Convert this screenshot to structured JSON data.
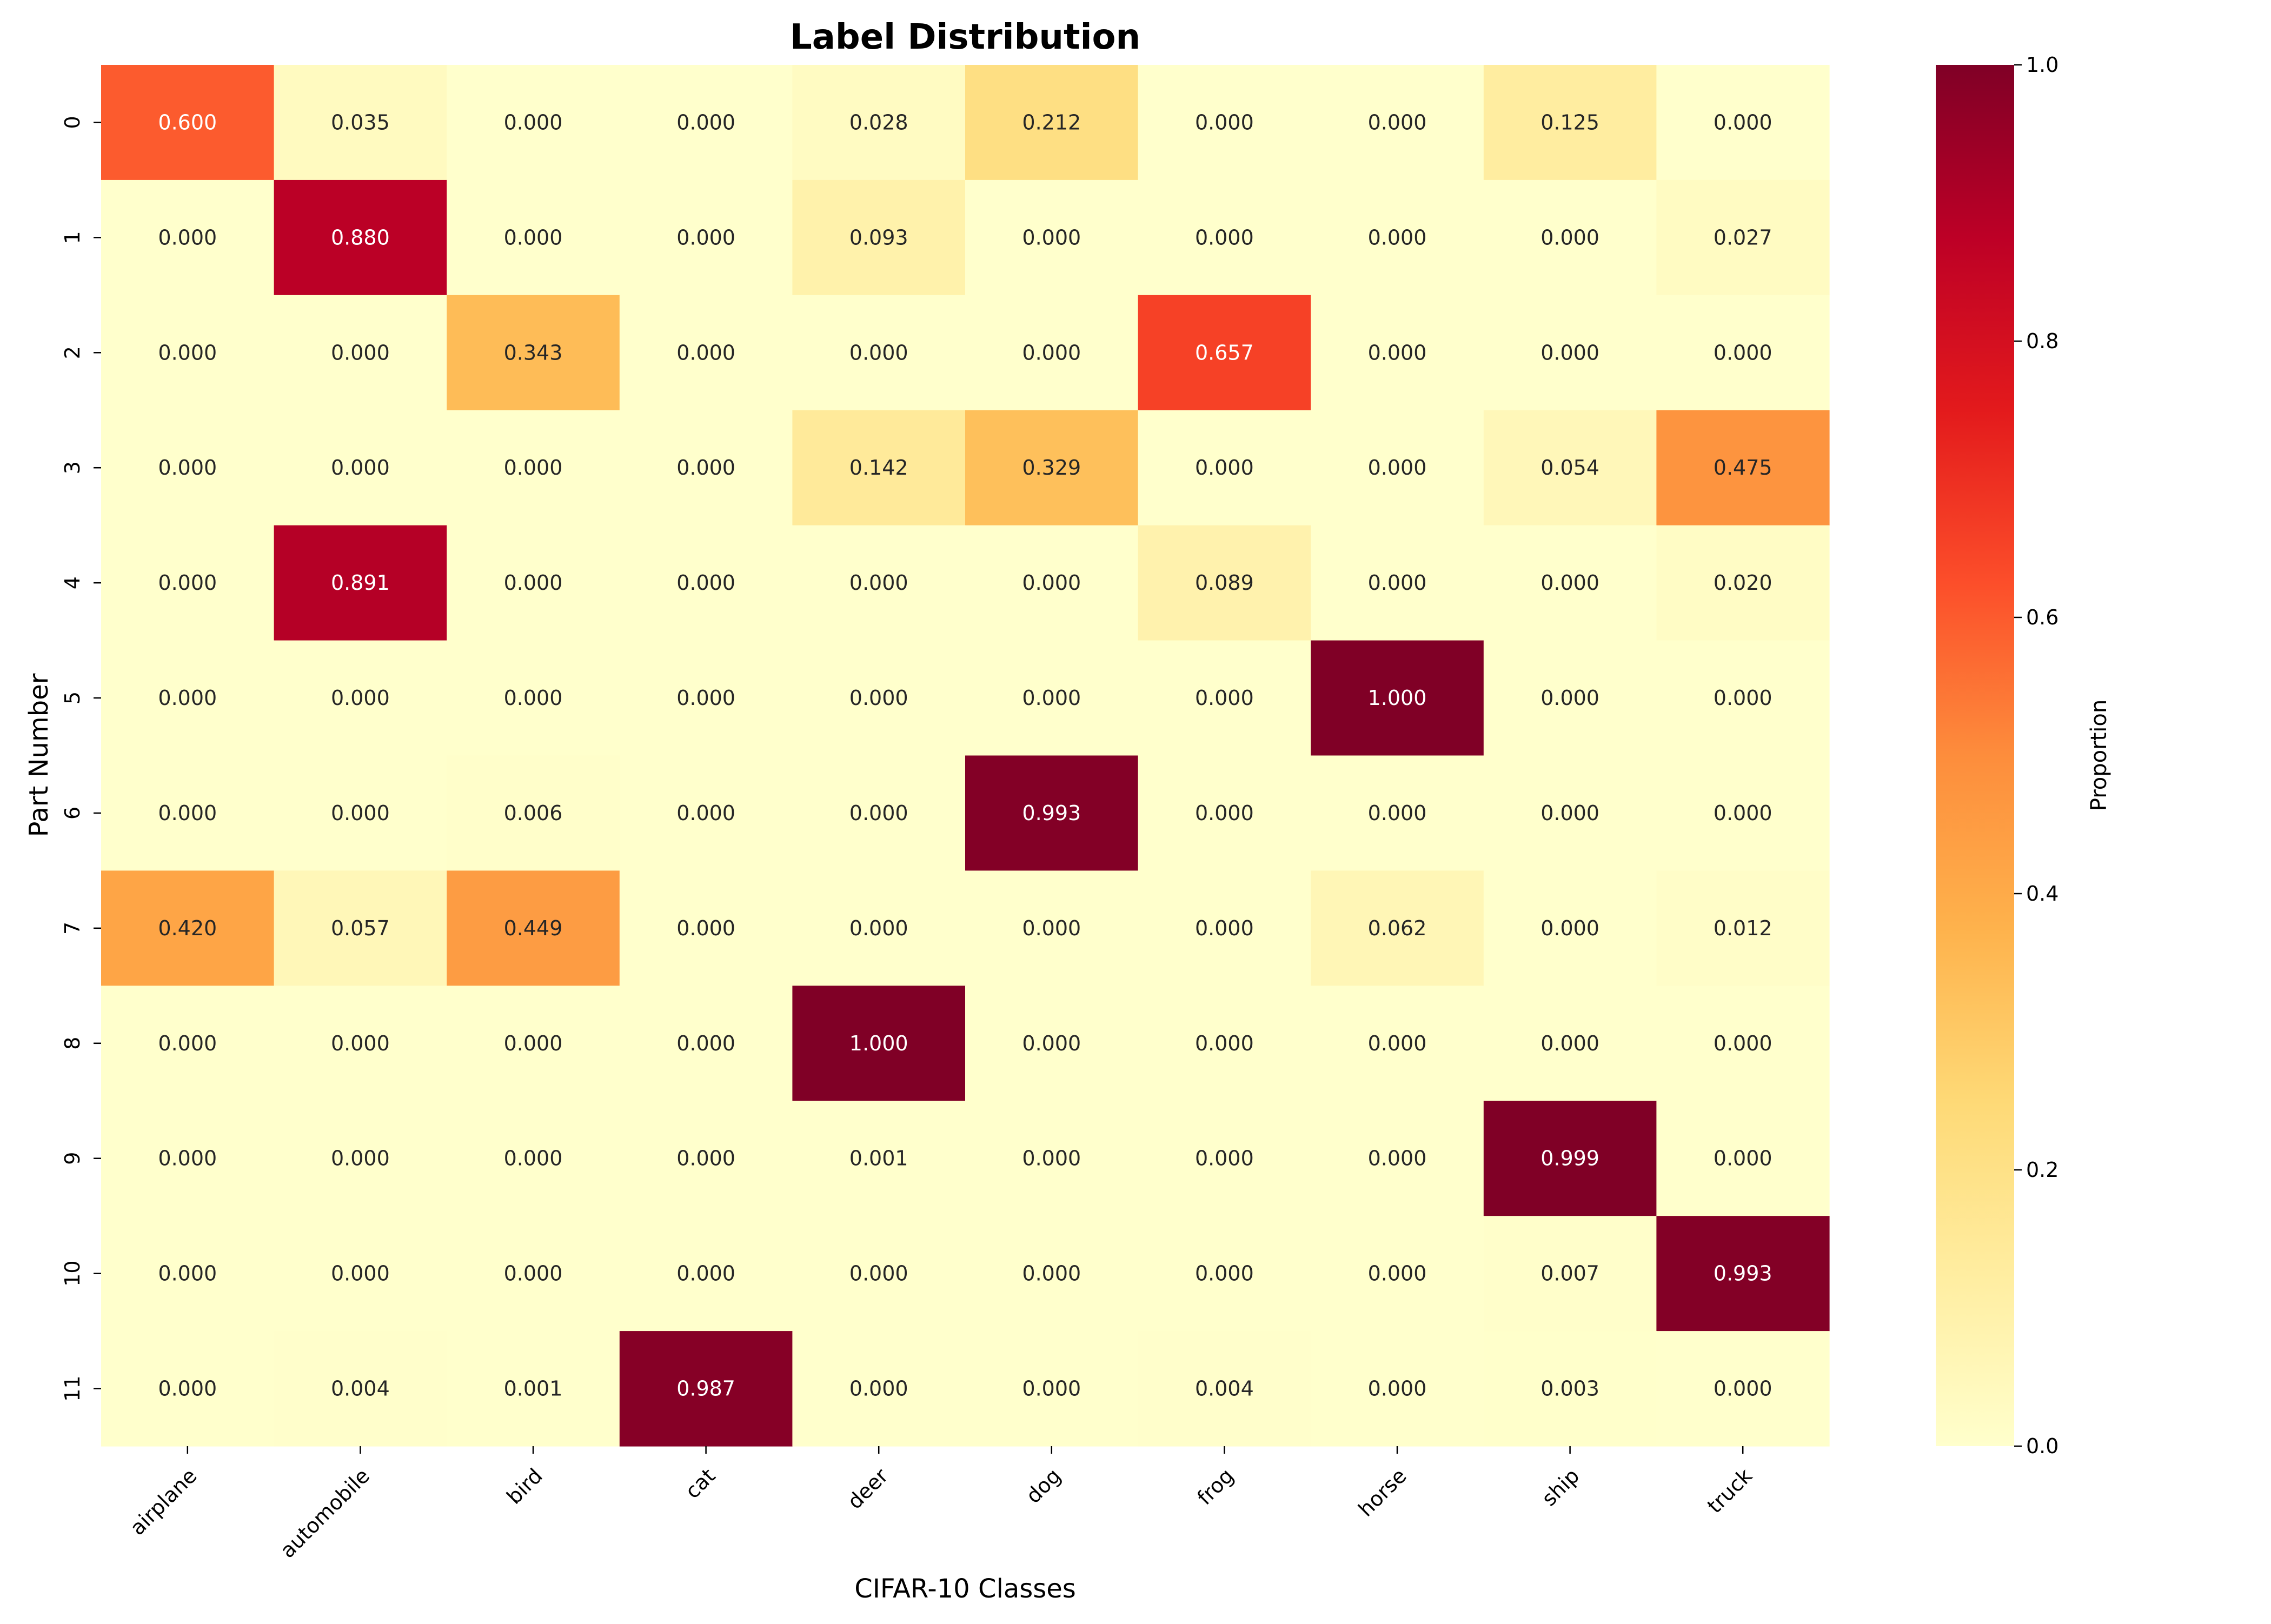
{
  "chart_data": {
    "type": "heatmap",
    "title": "Label Distribution",
    "xlabel": "CIFAR-10 Classes",
    "ylabel": "Part Number",
    "colorbar_label": "Proportion",
    "colormap": "YlOrRd",
    "vmin": 0.0,
    "vmax": 1.0,
    "colorbar_ticks": [
      "0.0",
      "0.2",
      "0.4",
      "0.6",
      "0.8",
      "1.0"
    ],
    "value_format": "3 decimals",
    "x_categories": [
      "airplane",
      "automobile",
      "bird",
      "cat",
      "deer",
      "dog",
      "frog",
      "horse",
      "ship",
      "truck"
    ],
    "y_categories": [
      "0",
      "1",
      "2",
      "3",
      "4",
      "5",
      "6",
      "7",
      "8",
      "9",
      "10",
      "11"
    ],
    "values": [
      [
        0.6,
        0.035,
        0.0,
        0.0,
        0.028,
        0.212,
        0.0,
        0.0,
        0.125,
        0.0
      ],
      [
        0.0,
        0.88,
        0.0,
        0.0,
        0.093,
        0.0,
        0.0,
        0.0,
        0.0,
        0.027
      ],
      [
        0.0,
        0.0,
        0.343,
        0.0,
        0.0,
        0.0,
        0.657,
        0.0,
        0.0,
        0.0
      ],
      [
        0.0,
        0.0,
        0.0,
        0.0,
        0.142,
        0.329,
        0.0,
        0.0,
        0.054,
        0.475
      ],
      [
        0.0,
        0.891,
        0.0,
        0.0,
        0.0,
        0.0,
        0.089,
        0.0,
        0.0,
        0.02
      ],
      [
        0.0,
        0.0,
        0.0,
        0.0,
        0.0,
        0.0,
        0.0,
        1.0,
        0.0,
        0.0
      ],
      [
        0.0,
        0.0,
        0.006,
        0.0,
        0.0,
        0.993,
        0.0,
        0.0,
        0.0,
        0.0
      ],
      [
        0.42,
        0.057,
        0.449,
        0.0,
        0.0,
        0.0,
        0.0,
        0.062,
        0.0,
        0.012
      ],
      [
        0.0,
        0.0,
        0.0,
        0.0,
        1.0,
        0.0,
        0.0,
        0.0,
        0.0,
        0.0
      ],
      [
        0.0,
        0.0,
        0.0,
        0.0,
        0.001,
        0.0,
        0.0,
        0.0,
        0.999,
        0.0
      ],
      [
        0.0,
        0.0,
        0.0,
        0.0,
        0.0,
        0.0,
        0.0,
        0.0,
        0.007,
        0.993
      ],
      [
        0.0,
        0.004,
        0.001,
        0.987,
        0.0,
        0.0,
        0.004,
        0.0,
        0.003,
        0.0
      ]
    ],
    "colors": [
      "#ffffcc",
      "#ffeda0",
      "#fed976",
      "#feb24c",
      "#fd8d3c",
      "#fc4e2a",
      "#e31a1c",
      "#bd0026",
      "#800026"
    ]
  }
}
